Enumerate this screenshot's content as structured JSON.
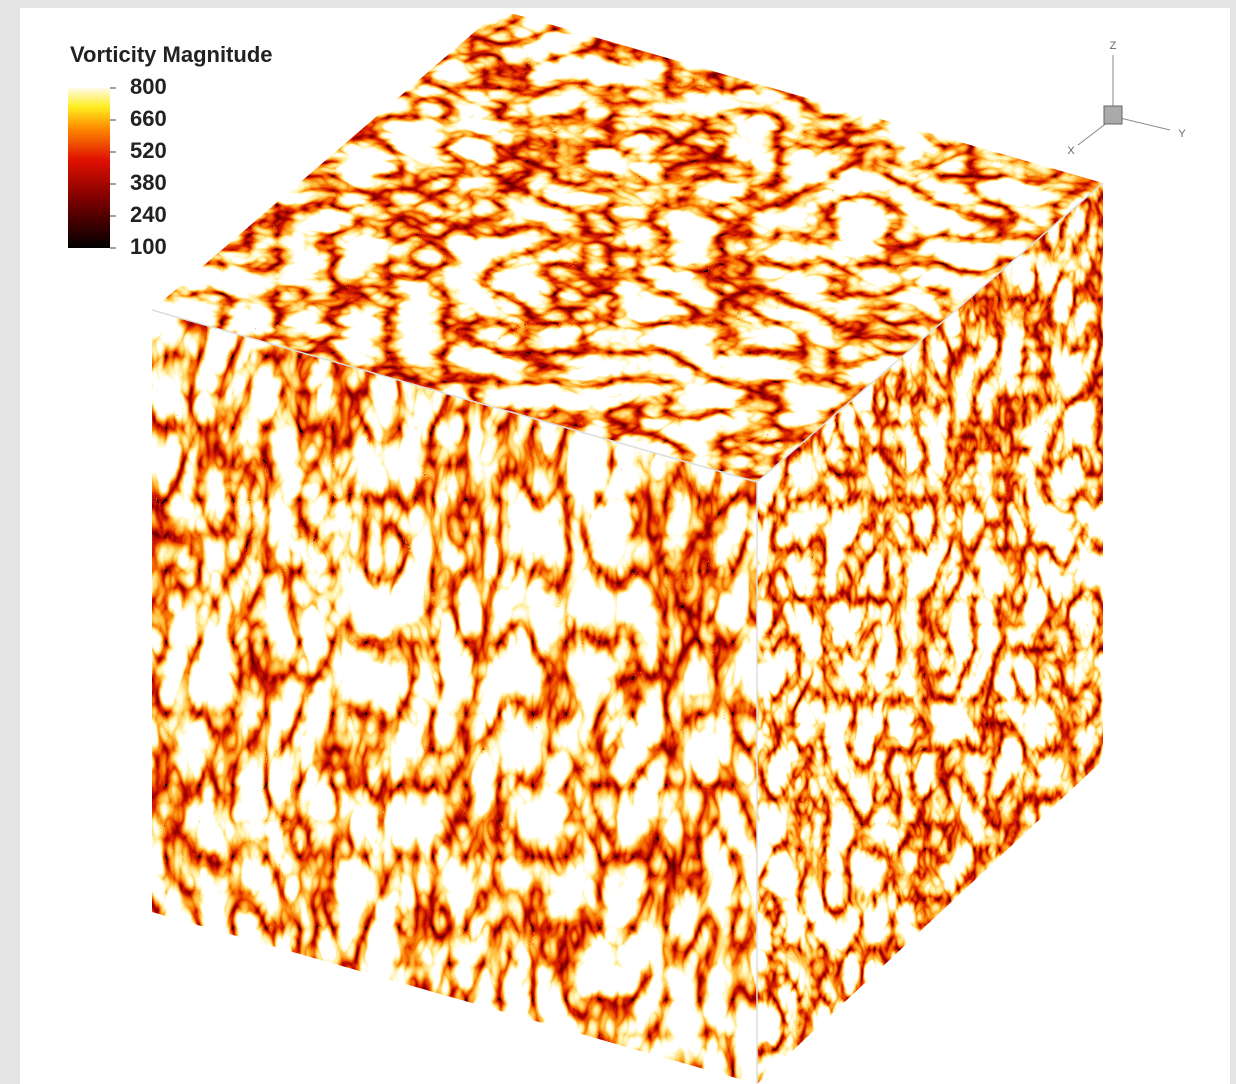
{
  "legend": {
    "title": "Vorticity Magnitude",
    "range": [
      100,
      800
    ],
    "ticks": [
      800,
      660,
      520,
      380,
      240,
      100
    ]
  },
  "axes": {
    "z": "Z",
    "y": "Y",
    "x": "X"
  }
}
